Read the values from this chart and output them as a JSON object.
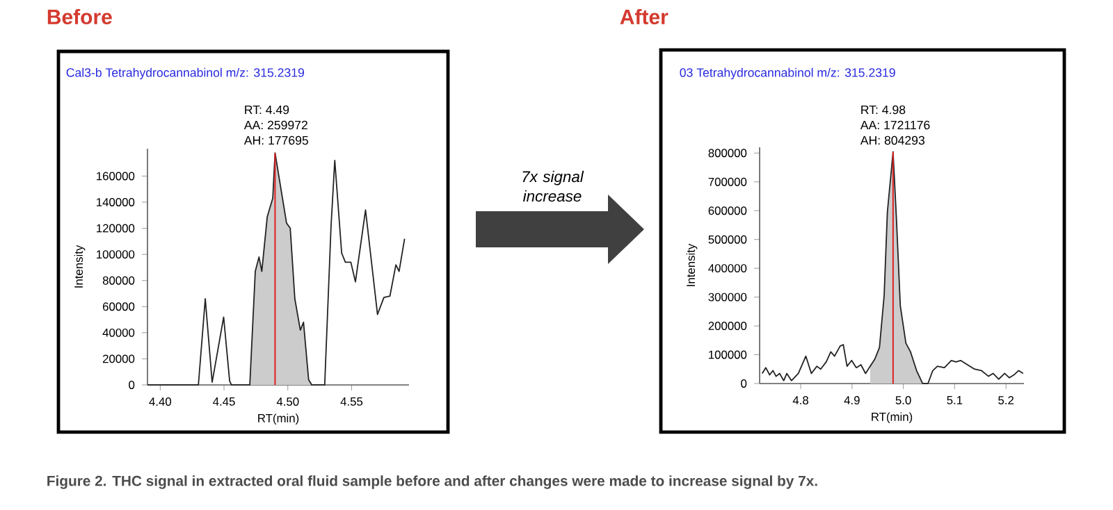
{
  "chart_data": [
    {
      "type": "line",
      "title": "Before",
      "subtitle": "Cal3-b   Tetrahydrocannabinol   m/z: 315.2319",
      "xlabel": "RT(min)",
      "ylabel": "Intensity",
      "xlim": [
        4.39,
        4.595
      ],
      "ylim": [
        0,
        181000
      ],
      "xticks": [
        {
          "value": 4.4,
          "label": "4.40"
        },
        {
          "value": 4.45,
          "label": "4.45"
        },
        {
          "value": 4.5,
          "label": "4.50"
        },
        {
          "value": 4.55,
          "label": "4.55"
        }
      ],
      "yticks": [
        0,
        20000,
        40000,
        60000,
        80000,
        100000,
        120000,
        140000,
        160000
      ],
      "series": [
        {
          "type": "area",
          "color": "#cccccc",
          "x": [
            4.4702,
            4.4745,
            4.4774,
            4.4796,
            4.4839,
            4.4882,
            4.49,
            4.499,
            4.5019,
            4.5055,
            4.5098,
            4.5123,
            4.5163,
            4.5188
          ],
          "values": [
            0,
            87000,
            98000,
            87000,
            129000,
            143000,
            177695,
            124000,
            120000,
            66000,
            42000,
            48000,
            4000,
            0
          ]
        },
        {
          "color": "#222222",
          "x": [
            4.39,
            4.4299,
            4.4353,
            4.4407,
            4.4497,
            4.4544,
            4.4558,
            4.4702,
            4.4745,
            4.4774,
            4.4796,
            4.4839,
            4.4882,
            4.49,
            4.499,
            4.5019,
            4.5055,
            4.5098,
            4.5123,
            4.5163,
            4.5188,
            4.5289,
            4.5339,
            4.5368,
            4.5422,
            4.5451,
            4.5494,
            4.553,
            4.5609,
            4.5703,
            4.5753,
            4.58,
            4.5847,
            4.5872,
            4.5915
          ],
          "values": [
            0,
            0,
            66000,
            2000,
            52000,
            3000,
            0,
            0,
            87000,
            98000,
            87000,
            129000,
            143000,
            177695,
            124000,
            120000,
            66000,
            42000,
            48000,
            4000,
            0,
            0,
            122000,
            172000,
            101000,
            94000,
            94000,
            79000,
            134000,
            54000,
            67000,
            68000,
            92000,
            87000,
            112000
          ]
        }
      ],
      "ref_lines": [
        {
          "axis": "x",
          "value": 4.49,
          "color": "#e02020"
        }
      ],
      "annotations": [
        "RT: 4.49",
        "AA: 259972",
        "AH: 177695",
        "7x signal increase"
      ]
    },
    {
      "type": "line",
      "title": "After",
      "subtitle": "03   Tetrahydrocannabinol   m/z: 315.2319",
      "xlabel": "RT(min)",
      "ylabel": "Intensity",
      "xlim": [
        4.72,
        5.235
      ],
      "ylim": [
        0,
        820000
      ],
      "xticks": [
        4.8,
        4.9,
        {
          "value": 5.0,
          "label": "5.0"
        },
        5.1,
        5.2
      ],
      "yticks": [
        0,
        100000,
        200000,
        300000,
        400000,
        500000,
        600000,
        700000,
        800000
      ],
      "series": [
        {
          "type": "area",
          "color": "#cccccc",
          "x": [
            4.9355,
            4.9445,
            4.9535,
            4.9626,
            4.9689,
            4.98,
            4.9869,
            4.9941,
            5.005,
            5.014,
            5.0258,
            5.0375
          ],
          "values": [
            60000,
            85000,
            125000,
            305000,
            595000,
            804293,
            560000,
            270000,
            140000,
            110000,
            45000,
            0
          ]
        },
        {
          "color": "#222222",
          "x": [
            4.725,
            4.732,
            4.7395,
            4.746,
            4.752,
            4.759,
            4.767,
            4.773,
            4.782,
            4.7955,
            4.81,
            4.8208,
            4.8316,
            4.839,
            4.8497,
            4.8587,
            4.866,
            4.8768,
            4.883,
            4.8903,
            4.8993,
            4.9084,
            4.9174,
            4.9264,
            4.9355,
            4.9445,
            4.9535,
            4.9626,
            4.9689,
            4.98,
            4.9869,
            4.9941,
            5.005,
            5.014,
            5.0258,
            5.0375,
            5.048,
            5.0574,
            5.0664,
            5.08,
            5.0935,
            5.1025,
            5.1116,
            5.125,
            5.1386,
            5.152,
            5.166,
            5.1748,
            5.1857,
            5.1974,
            5.2064,
            5.2155,
            5.2245,
            5.2334
          ],
          "values": [
            35000,
            55000,
            30000,
            45000,
            25000,
            35000,
            10000,
            35000,
            10000,
            35000,
            95000,
            35000,
            60000,
            50000,
            75000,
            110000,
            95000,
            130000,
            135000,
            60000,
            80000,
            55000,
            65000,
            35000,
            60000,
            85000,
            125000,
            305000,
            595000,
            804293,
            560000,
            270000,
            140000,
            110000,
            45000,
            0,
            0,
            45000,
            60000,
            55000,
            80000,
            75000,
            80000,
            65000,
            50000,
            45000,
            25000,
            35000,
            15000,
            35000,
            20000,
            30000,
            45000,
            35000
          ]
        }
      ],
      "ref_lines": [
        {
          "axis": "x",
          "value": 4.98,
          "color": "#e02020"
        }
      ],
      "annotations": [
        "RT: 4.98",
        "AA: 1721176",
        "AH: 804293",
        "Figure 2. THC signal in extracted oral fluid sample before and after changes were made to increase signal by 7x."
      ]
    }
  ]
}
